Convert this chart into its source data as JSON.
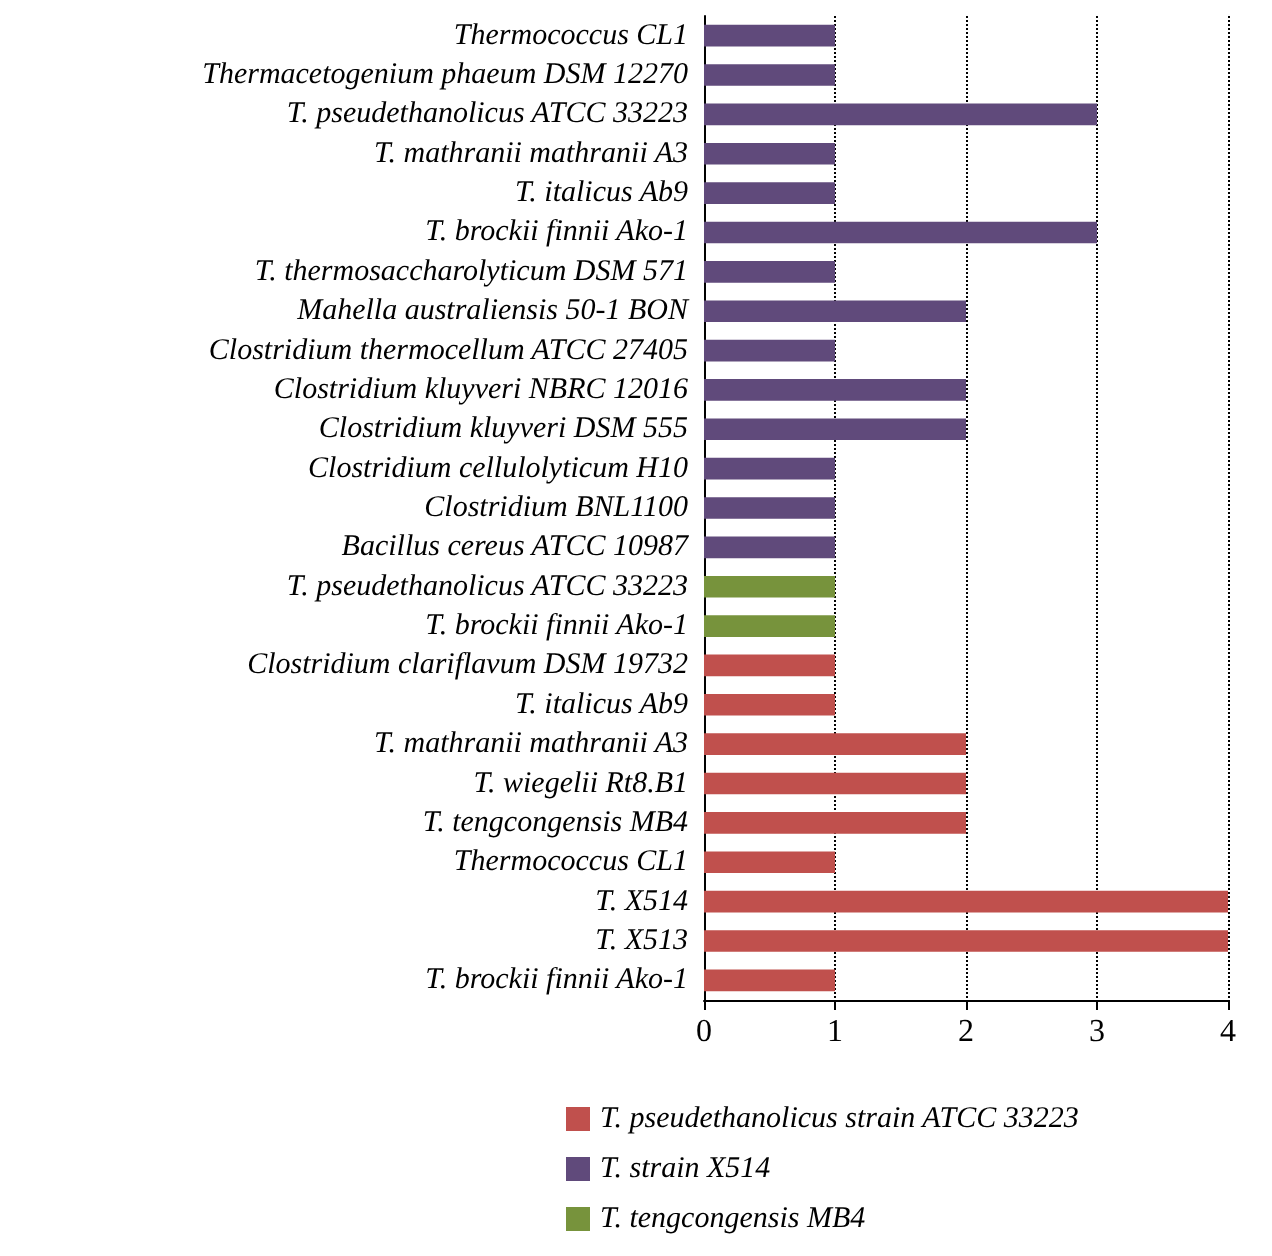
{
  "chart_data": {
    "type": "bar",
    "orientation": "horizontal",
    "stacked": true,
    "categories": [
      "Thermococcus CL1",
      "Thermacetogenium phaeum DSM 12270",
      "T. pseudethanolicus ATCC 33223",
      "T. mathranii mathranii A3",
      "T. italicus Ab9",
      "T. brockii finnii Ako-1",
      "T. thermosaccharolyticum DSM 571",
      "Mahella australiensis 50-1 BON",
      "Clostridium thermocellum ATCC 27405",
      "Clostridium kluyveri NBRC 12016",
      "Clostridium kluyveri DSM 555",
      "Clostridium cellulolyticum H10",
      "Clostridium BNL1100",
      "Bacillus cereus ATCC 10987",
      "T. pseudethanolicus ATCC 33223",
      "T. brockii finnii Ako-1",
      "Clostridium clariflavum DSM 19732",
      "T. italicus Ab9",
      "T. mathranii mathranii A3",
      "T. wiegelii Rt8.B1",
      "T. tengcongensis MB4",
      "Thermococcus CL1",
      "T. X514",
      "T. X513",
      "T. brockii finnii Ako-1"
    ],
    "series": [
      {
        "name": "T. pseudethanolicus strain ATCC 33223",
        "color": "#c0504d",
        "values": [
          null,
          null,
          null,
          null,
          null,
          null,
          null,
          null,
          null,
          null,
          null,
          null,
          null,
          null,
          null,
          null,
          1,
          1,
          2,
          2,
          2,
          1,
          4,
          4,
          1
        ]
      },
      {
        "name": "T. strain X514",
        "color": "#604a7b",
        "values": [
          1,
          1,
          3,
          1,
          1,
          3,
          1,
          2,
          1,
          2,
          2,
          1,
          1,
          1,
          null,
          null,
          null,
          null,
          null,
          null,
          null,
          null,
          null,
          null,
          null
        ]
      },
      {
        "name": "T. tengcongensis MB4",
        "color": "#77933c",
        "values": [
          null,
          null,
          null,
          null,
          null,
          null,
          null,
          null,
          null,
          null,
          null,
          null,
          null,
          null,
          1,
          1,
          null,
          null,
          null,
          null,
          null,
          null,
          null,
          null,
          null
        ]
      }
    ],
    "xlim": [
      0,
      4
    ],
    "xticks": [
      0,
      1,
      2,
      3,
      4
    ],
    "grid": "x",
    "legend": "bottom"
  }
}
